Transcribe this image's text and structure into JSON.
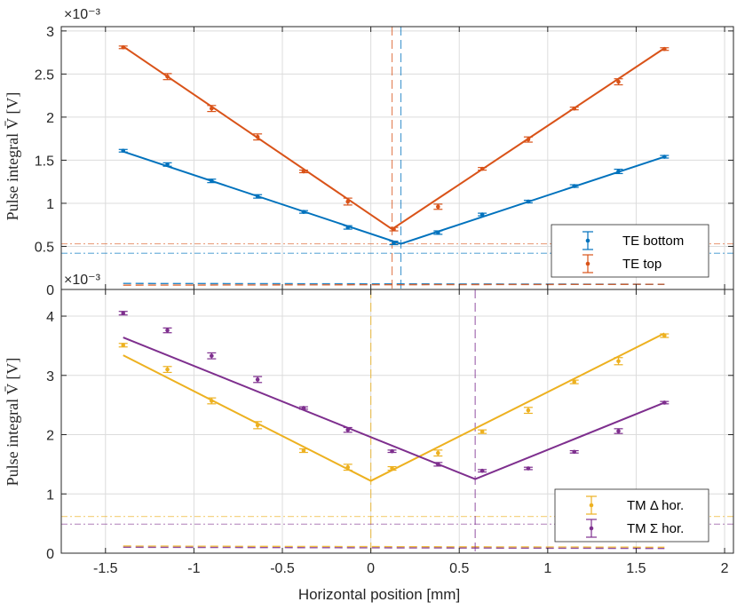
{
  "chart_data": [
    {
      "type": "line",
      "panel": "top",
      "ylabel": "Pulse integral V̄ [V]",
      "xlabel": "",
      "exponent_label": "×10⁻³",
      "xlim": [
        -1.75,
        2.05
      ],
      "ylim": [
        0,
        3.05
      ],
      "xticks": [
        -1.5,
        -1,
        -0.5,
        0,
        0.5,
        1,
        1.5,
        2
      ],
      "xtick_labels": [
        "-1.5",
        "-1",
        "-0.5",
        "0",
        "0.5",
        "1",
        "1.5",
        "2"
      ],
      "yticks": [
        0,
        0.5,
        1,
        1.5,
        2,
        2.5,
        3
      ],
      "ytick_labels": [
        "0",
        "0.5",
        "1",
        "1.5",
        "2",
        "2.5",
        "3"
      ],
      "grid": true,
      "legend_position": "bottom-right",
      "series": [
        {
          "name": "TE bottom",
          "color": "#0072BD",
          "x": [
            -1.4,
            -1.15,
            -0.9,
            -0.64,
            -0.38,
            -0.13,
            0.13,
            0.38,
            0.63,
            0.89,
            1.15,
            1.4,
            1.66
          ],
          "y": [
            1.61,
            1.45,
            1.26,
            1.08,
            0.9,
            0.72,
            0.54,
            0.66,
            0.87,
            1.02,
            1.2,
            1.37,
            1.54
          ],
          "err": [
            0.015,
            0.02,
            0.02,
            0.02,
            0.015,
            0.02,
            0.02,
            0.02,
            0.015,
            0.015,
            0.015,
            0.025,
            0.015
          ],
          "fit_x": [
            -1.4,
            0.17,
            1.66
          ],
          "fit_y": [
            1.6,
            0.53,
            1.54
          ],
          "vline": 0.17,
          "hline": 0.42,
          "baseline_y": [
            0.07,
            0.06
          ]
        },
        {
          "name": "TE top",
          "color": "#D95319",
          "x": [
            -1.4,
            -1.15,
            -0.9,
            -0.64,
            -0.38,
            -0.13,
            0.13,
            0.38,
            0.63,
            0.89,
            1.15,
            1.4,
            1.66
          ],
          "y": [
            2.81,
            2.47,
            2.1,
            1.77,
            1.37,
            1.02,
            0.7,
            0.96,
            1.4,
            1.74,
            2.1,
            2.41,
            2.79
          ],
          "err": [
            0.015,
            0.035,
            0.035,
            0.035,
            0.015,
            0.04,
            0.02,
            0.03,
            0.015,
            0.03,
            0.015,
            0.035,
            0.015
          ],
          "fit_x": [
            -1.4,
            0.12,
            1.66
          ],
          "fit_y": [
            2.82,
            0.7,
            2.8
          ],
          "vline": 0.12,
          "hline": 0.53,
          "baseline_y": [
            0.05,
            0.06
          ]
        }
      ],
      "legend": [
        "TE bottom",
        "TE top"
      ]
    },
    {
      "type": "line",
      "panel": "bottom",
      "ylabel": "Pulse integral V̄ [V]",
      "xlabel": "Horizontal position [mm]",
      "exponent_label": "×10⁻³",
      "xlim": [
        -1.75,
        2.05
      ],
      "ylim": [
        0,
        4.45
      ],
      "xticks": [
        -1.5,
        -1,
        -0.5,
        0,
        0.5,
        1,
        1.5,
        2
      ],
      "xtick_labels": [
        "-1.5",
        "-1",
        "-0.5",
        "0",
        "0.5",
        "1",
        "1.5",
        "2"
      ],
      "yticks": [
        0,
        1,
        2,
        3,
        4
      ],
      "ytick_labels": [
        "0",
        "1",
        "2",
        "3",
        "4"
      ],
      "grid": true,
      "legend_position": "bottom-right",
      "series": [
        {
          "name": "TM Δ hor.",
          "color": "#EDB120",
          "x": [
            -1.4,
            -1.15,
            -0.9,
            -0.64,
            -0.38,
            -0.13,
            0.12,
            0.38,
            0.63,
            0.89,
            1.15,
            1.4,
            1.66
          ],
          "y": [
            3.51,
            3.1,
            2.57,
            2.16,
            1.73,
            1.45,
            1.43,
            1.69,
            2.05,
            2.41,
            2.89,
            3.24,
            3.67
          ],
          "err": [
            0.03,
            0.05,
            0.05,
            0.06,
            0.03,
            0.05,
            0.03,
            0.05,
            0.03,
            0.05,
            0.03,
            0.06,
            0.03
          ],
          "fit_x": [
            -1.4,
            0.0,
            1.66
          ],
          "fit_y": [
            3.34,
            1.22,
            3.71
          ],
          "vline": 0.0,
          "hline": 0.62,
          "baseline_y": [
            0.12,
            0.1
          ]
        },
        {
          "name": "TM Σ hor.",
          "color": "#7E2F8E",
          "x": [
            -1.4,
            -1.15,
            -0.9,
            -0.64,
            -0.38,
            -0.13,
            0.12,
            0.38,
            0.63,
            0.89,
            1.15,
            1.4,
            1.66
          ],
          "y": [
            4.05,
            3.76,
            3.33,
            2.93,
            2.45,
            2.08,
            1.72,
            1.5,
            1.39,
            1.43,
            1.71,
            2.06,
            2.54
          ],
          "err": [
            0.03,
            0.04,
            0.05,
            0.05,
            0.02,
            0.04,
            0.02,
            0.03,
            0.02,
            0.02,
            0.02,
            0.04,
            0.02
          ],
          "fit_x": [
            -1.4,
            0.59,
            1.66
          ],
          "fit_y": [
            3.64,
            1.25,
            2.54
          ],
          "vline": 0.59,
          "hline": 0.49,
          "baseline_y": [
            0.1,
            0.08
          ]
        }
      ],
      "legend": [
        "TM Δ hor.",
        "TM Σ hor."
      ]
    }
  ]
}
